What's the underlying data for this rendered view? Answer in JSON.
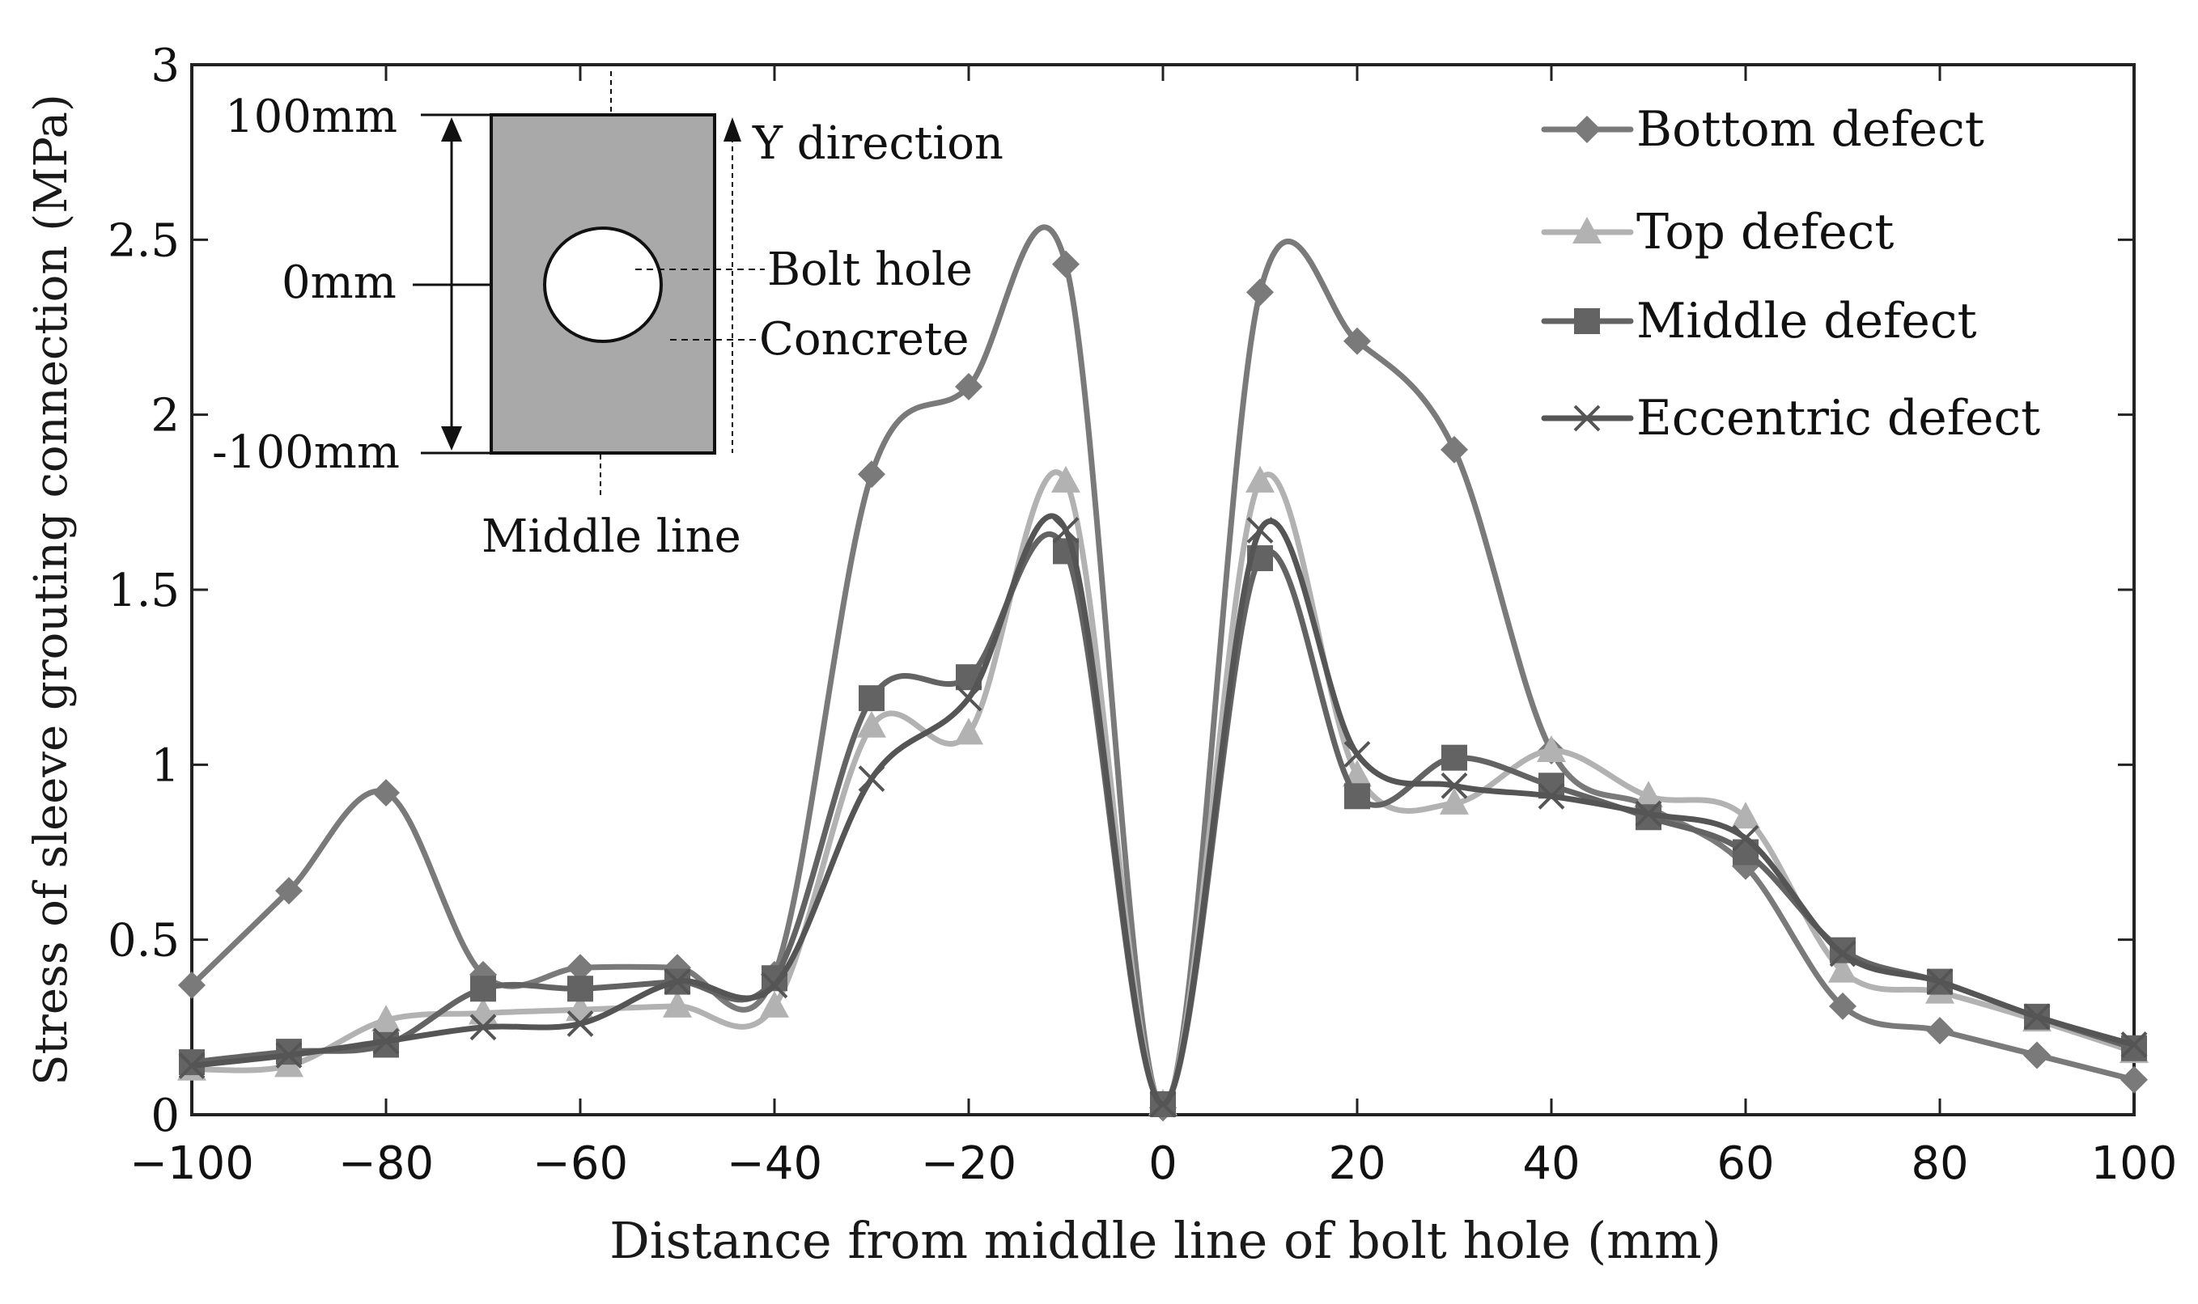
{
  "chart_data": {
    "type": "line",
    "title": "",
    "xlabel": "Distance from middle line of bolt hole (mm)",
    "ylabel": "Stress of sleeve grouting connection (MPa)",
    "xlim": [
      -100,
      100
    ],
    "ylim": [
      0,
      3
    ],
    "xticks": [
      -100,
      -80,
      -60,
      -40,
      -20,
      0,
      20,
      40,
      60,
      80,
      100
    ],
    "yticks": [
      0,
      0.5,
      1,
      1.5,
      2,
      2.5,
      3
    ],
    "xtick_labels": [
      "−100",
      "−80",
      "−60",
      "−40",
      "−20",
      "0",
      "20",
      "40",
      "60",
      "80",
      "100"
    ],
    "ytick_labels": [
      "0",
      "0.5",
      "1",
      "1.5",
      "2",
      "2.5",
      "3"
    ],
    "legend_position": "top-right",
    "x": [
      -100,
      -90,
      -80,
      -70,
      -60,
      -50,
      -40,
      -30,
      -20,
      -10,
      0,
      10,
      20,
      30,
      40,
      50,
      60,
      70,
      80,
      90,
      100
    ],
    "series": [
      {
        "name": "Bottom defect",
        "marker": "diamond",
        "color": "#7a7a7a",
        "values": [
          0.37,
          0.64,
          0.92,
          0.4,
          0.42,
          0.42,
          0.4,
          1.83,
          2.08,
          2.43,
          0.02,
          2.35,
          2.21,
          1.9,
          1.04,
          0.88,
          0.71,
          0.31,
          0.24,
          0.17,
          0.1
        ]
      },
      {
        "name": "Top defect",
        "marker": "triangle",
        "color": "#b2b2b2",
        "values": [
          0.13,
          0.14,
          0.27,
          0.29,
          0.3,
          0.31,
          0.31,
          1.11,
          1.09,
          1.81,
          0.03,
          1.81,
          0.97,
          0.89,
          1.04,
          0.91,
          0.85,
          0.41,
          0.35,
          0.27,
          0.18
        ]
      },
      {
        "name": "Middle defect",
        "marker": "square",
        "color": "#636363",
        "values": [
          0.15,
          0.18,
          0.2,
          0.36,
          0.36,
          0.38,
          0.39,
          1.19,
          1.25,
          1.61,
          0.03,
          1.59,
          0.91,
          1.02,
          0.94,
          0.85,
          0.75,
          0.47,
          0.38,
          0.28,
          0.19
        ]
      },
      {
        "name": "Eccentric defect",
        "marker": "x",
        "color": "#555555",
        "values": [
          0.14,
          0.17,
          0.21,
          0.25,
          0.26,
          0.38,
          0.37,
          0.96,
          1.19,
          1.67,
          0.03,
          1.67,
          1.03,
          0.94,
          0.91,
          0.86,
          0.79,
          0.46,
          0.38,
          0.28,
          0.2
        ]
      }
    ],
    "inset": {
      "label_top": "100mm",
      "label_mid": "0mm",
      "label_bottom": "-100mm",
      "label_y_direction": "Y direction",
      "label_bolt_hole": "Bolt hole",
      "label_concrete": "Concrete",
      "label_middle_line": "Middle line"
    }
  }
}
